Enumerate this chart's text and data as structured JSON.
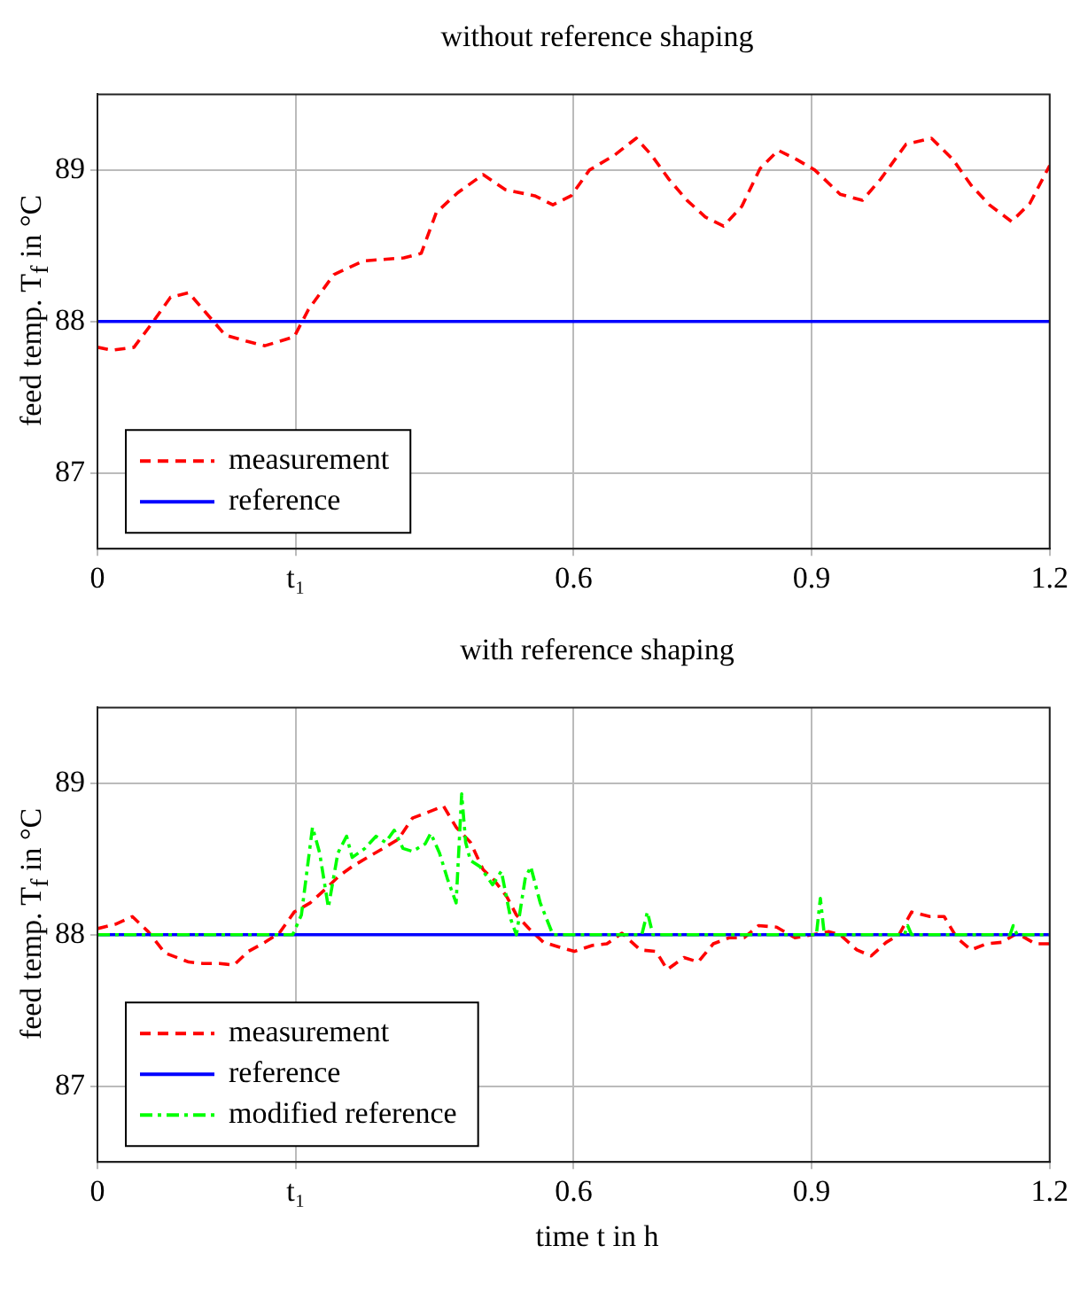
{
  "chart_data": [
    {
      "type": "line",
      "title": "without reference shaping",
      "ylabel": "feed temp. T$_{f}$ in °C",
      "xlim": [
        0,
        1.2
      ],
      "xticks": [
        0,
        {
          "value": 0.25,
          "label": "t₁"
        },
        0.6,
        0.9,
        1.2
      ],
      "ylim": [
        86.5,
        89.5
      ],
      "yticks": [
        87,
        88,
        89
      ],
      "grid": true,
      "legend": "bottom left",
      "series": [
        {
          "name": "measurement",
          "color": "#ff0000",
          "line_style": "dashed",
          "x": [
            0,
            0.018,
            0.046,
            0.069,
            0.092,
            0.115,
            0.138,
            0.161,
            0.188,
            0.211,
            0.23,
            0.248,
            0.266,
            0.298,
            0.335,
            0.386,
            0.408,
            0.427,
            0.454,
            0.486,
            0.514,
            0.551,
            0.574,
            0.597,
            0.62,
            0.652,
            0.679,
            0.698,
            0.72,
            0.743,
            0.766,
            0.789,
            0.812,
            0.835,
            0.858,
            0.881,
            0.904,
            0.936,
            0.964,
            0.987,
            1.019,
            1.051,
            1.078,
            1.101,
            1.124,
            1.152,
            1.175,
            1.2
          ],
          "values": [
            87.83,
            87.81,
            87.83,
            87.99,
            88.16,
            88.19,
            88.05,
            87.91,
            87.87,
            87.84,
            87.87,
            87.9,
            88.08,
            88.31,
            88.4,
            88.42,
            88.45,
            88.72,
            88.85,
            88.97,
            88.87,
            88.83,
            88.77,
            88.83,
            89.0,
            89.1,
            89.21,
            89.1,
            88.94,
            88.8,
            88.69,
            88.63,
            88.76,
            89.01,
            89.13,
            89.07,
            89.0,
            88.84,
            88.8,
            88.94,
            89.17,
            89.21,
            89.07,
            88.9,
            88.77,
            88.66,
            88.78,
            89.03
          ]
        },
        {
          "name": "reference",
          "color": "#0000ff",
          "line_style": "solid",
          "x": [
            0,
            1.2
          ],
          "values": [
            88,
            88
          ]
        }
      ]
    },
    {
      "type": "line",
      "title": "with reference shaping",
      "xlabel": "time t in h",
      "ylabel": "feed temp. T$_{f}$ in °C",
      "xlim": [
        0,
        1.2
      ],
      "xticks": [
        0,
        {
          "value": 0.25,
          "label": "t₁"
        },
        0.6,
        0.9,
        1.2
      ],
      "ylim": [
        86.5,
        89.5
      ],
      "yticks": [
        87,
        88,
        89
      ],
      "grid": true,
      "legend": "bottom left",
      "series": [
        {
          "name": "measurement",
          "color": "#ff0000",
          "line_style": "dashed",
          "x": [
            0,
            0.023,
            0.044,
            0.064,
            0.085,
            0.115,
            0.133,
            0.154,
            0.172,
            0.19,
            0.211,
            0.229,
            0.248,
            0.268,
            0.287,
            0.305,
            0.321,
            0.34,
            0.36,
            0.379,
            0.397,
            0.417,
            0.436,
            0.452,
            0.47,
            0.486,
            0.5,
            0.516,
            0.528,
            0.544,
            0.562,
            0.581,
            0.601,
            0.624,
            0.642,
            0.661,
            0.684,
            0.704,
            0.718,
            0.739,
            0.757,
            0.776,
            0.796,
            0.815,
            0.833,
            0.856,
            0.879,
            0.901,
            0.922,
            0.936,
            0.957,
            0.975,
            0.994,
            1.01,
            1.026,
            1.049,
            1.067,
            1.083,
            1.101,
            1.12,
            1.14,
            1.159,
            1.182,
            1.2
          ],
          "values": [
            88.04,
            88.07,
            88.12,
            88.02,
            87.88,
            87.82,
            87.81,
            87.81,
            87.8,
            87.89,
            87.95,
            88.01,
            88.15,
            88.21,
            88.3,
            88.39,
            88.45,
            88.51,
            88.57,
            88.63,
            88.77,
            88.81,
            88.85,
            88.71,
            88.61,
            88.43,
            88.36,
            88.25,
            88.13,
            88.04,
            87.95,
            87.92,
            87.89,
            87.93,
            87.94,
            88.01,
            87.9,
            87.89,
            87.77,
            87.85,
            87.82,
            87.94,
            87.98,
            87.98,
            88.06,
            88.05,
            87.98,
            88.0,
            88.02,
            88.0,
            87.9,
            87.86,
            87.95,
            88.0,
            88.15,
            88.12,
            88.12,
            87.98,
            87.9,
            87.94,
            87.95,
            88.01,
            87.94,
            87.94
          ]
        },
        {
          "name": "reference",
          "color": "#0000ff",
          "line_style": "solid",
          "x": [
            0,
            1.2
          ],
          "values": [
            88,
            88
          ]
        },
        {
          "name": "modified reference",
          "color": "#00ff00",
          "line_style": "dashdot",
          "x": [
            0,
            0.246,
            0.257,
            0.271,
            0.28,
            0.291,
            0.303,
            0.314,
            0.321,
            0.337,
            0.351,
            0.363,
            0.374,
            0.385,
            0.397,
            0.413,
            0.42,
            0.431,
            0.441,
            0.452,
            0.459,
            0.464,
            0.47,
            0.482,
            0.498,
            0.509,
            0.521,
            0.528,
            0.539,
            0.546,
            0.558,
            0.574,
            0.686,
            0.693,
            0.7,
            0.906,
            0.911,
            0.916,
            1.017,
            1.021,
            1.026,
            1.15,
            1.154,
            1.159,
            1.2
          ],
          "values": [
            88.0,
            88.0,
            88.13,
            88.71,
            88.54,
            88.18,
            88.54,
            88.65,
            88.51,
            88.57,
            88.65,
            88.61,
            88.69,
            88.57,
            88.55,
            88.6,
            88.67,
            88.54,
            88.37,
            88.21,
            88.93,
            88.61,
            88.49,
            88.45,
            88.33,
            88.42,
            88.1,
            88.0,
            88.37,
            88.45,
            88.21,
            88.0,
            88.0,
            88.15,
            88.0,
            88.0,
            88.24,
            88.0,
            88.0,
            88.06,
            88.0,
            88.0,
            88.06,
            88.0,
            88.0
          ]
        }
      ]
    }
  ]
}
